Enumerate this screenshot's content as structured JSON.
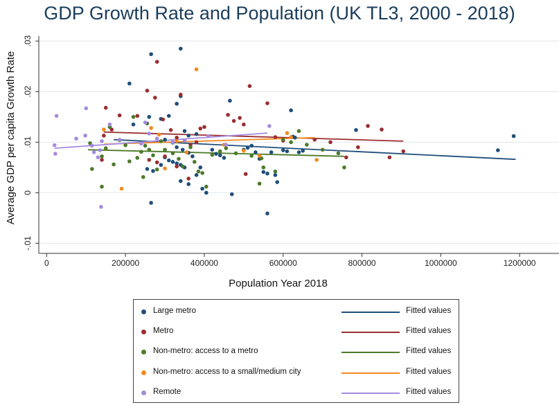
{
  "chart_data": {
    "type": "scatter",
    "title": "GDP Growth Rate and Population (UK TL3, 2000 - 2018)",
    "xlabel": "Population Year 2018",
    "ylabel": "Average GDP per capita Growth Rate",
    "xlim": [
      -20000,
      1300000
    ],
    "ylim": [
      -0.012,
      0.031
    ],
    "x_ticks": [
      0,
      200000,
      400000,
      600000,
      800000,
      1000000,
      1200000
    ],
    "x_tick_labels": [
      "0",
      "200000",
      "400000",
      "600000",
      "800000",
      "1000000",
      "1200000"
    ],
    "y_ticks": [
      -0.01,
      0,
      0.01,
      0.02,
      0.03
    ],
    "y_tick_labels": [
      "-.01",
      "0",
      ".01",
      ".02",
      ".03"
    ],
    "grid": "horizontal",
    "legend_position": "bottom",
    "series": [
      {
        "name": "Large metro",
        "color": "#1f4e79",
        "fit_label": "Fitted values",
        "fit": [
          [
            170000,
            0.0105
          ],
          [
            1190000,
            0.0066
          ]
        ],
        "points": [
          [
            265000,
            0.0274
          ],
          [
            340000,
            0.0285
          ],
          [
            210000,
            0.0216
          ],
          [
            330000,
            0.0176
          ],
          [
            340000,
            0.0191
          ],
          [
            465000,
            0.0182
          ],
          [
            620000,
            0.0163
          ],
          [
            220000,
            0.0135
          ],
          [
            260000,
            0.015
          ],
          [
            290000,
            0.0146
          ],
          [
            310000,
            0.0152
          ],
          [
            350000,
            0.0122
          ],
          [
            360000,
            0.0113
          ],
          [
            380000,
            0.0116
          ],
          [
            300000,
            0.0105
          ],
          [
            320000,
            0.0099
          ],
          [
            330000,
            0.009
          ],
          [
            345000,
            0.0085
          ],
          [
            360000,
            0.0079
          ],
          [
            370000,
            0.0072
          ],
          [
            300000,
            0.007
          ],
          [
            310000,
            0.0064
          ],
          [
            320000,
            0.0061
          ],
          [
            330000,
            0.0058
          ],
          [
            340000,
            0.0055
          ],
          [
            350000,
            0.005
          ],
          [
            290000,
            0.0055
          ],
          [
            255000,
            0.0047
          ],
          [
            270000,
            0.0043
          ],
          [
            420000,
            0.0085
          ],
          [
            430000,
            0.0077
          ],
          [
            440000,
            0.0074
          ],
          [
            450000,
            0.0069
          ],
          [
            500000,
            0.0085
          ],
          [
            510000,
            0.0089
          ],
          [
            520000,
            0.0093
          ],
          [
            530000,
            0.008
          ],
          [
            540000,
            0.0067
          ],
          [
            550000,
            0.0041
          ],
          [
            560000,
            0.0038
          ],
          [
            570000,
            0.008
          ],
          [
            580000,
            0.0035
          ],
          [
            585000,
            0.0021
          ],
          [
            600000,
            0.0084
          ],
          [
            610000,
            0.0082
          ],
          [
            625000,
            0.0111
          ],
          [
            630000,
            0.0109
          ],
          [
            640000,
            0.008
          ],
          [
            650000,
            0.0083
          ],
          [
            390000,
            0.005
          ],
          [
            395000,
            0.0008
          ],
          [
            405000,
            0.0
          ],
          [
            470000,
            -0.0003
          ],
          [
            560000,
            -0.0041
          ],
          [
            265000,
            -0.002
          ],
          [
            340000,
            0.0023
          ],
          [
            360000,
            0.0017
          ],
          [
            380000,
            0.0035
          ],
          [
            785000,
            0.0124
          ],
          [
            1145000,
            0.0084
          ],
          [
            1185000,
            0.0112
          ]
        ]
      },
      {
        "name": "Metro",
        "color": "#9b2d30",
        "fit_label": "Fitted values",
        "fit": [
          [
            145000,
            0.012
          ],
          [
            905000,
            0.0102
          ]
        ],
        "points": [
          [
            280000,
            0.0259
          ],
          [
            255000,
            0.0202
          ],
          [
            275000,
            0.0188
          ],
          [
            340000,
            0.0194
          ],
          [
            515000,
            0.0211
          ],
          [
            185000,
            0.0153
          ],
          [
            230000,
            0.0152
          ],
          [
            295000,
            0.0145
          ],
          [
            315000,
            0.0124
          ],
          [
            330000,
            0.0109
          ],
          [
            350000,
            0.0103
          ],
          [
            365000,
            0.0095
          ],
          [
            380000,
            0.01
          ],
          [
            390000,
            0.0127
          ],
          [
            400000,
            0.013
          ],
          [
            460000,
            0.0154
          ],
          [
            475000,
            0.0142
          ],
          [
            490000,
            0.0148
          ],
          [
            500000,
            0.0135
          ],
          [
            560000,
            0.0177
          ],
          [
            580000,
            0.011
          ],
          [
            600000,
            0.0103
          ],
          [
            150000,
            0.0168
          ],
          [
            165000,
            0.0125
          ],
          [
            145000,
            0.0113
          ],
          [
            140000,
            0.0065
          ],
          [
            260000,
            0.0065
          ],
          [
            280000,
            0.006
          ],
          [
            300000,
            0.0072
          ],
          [
            330000,
            0.0052
          ],
          [
            360000,
            0.0028
          ],
          [
            505000,
            0.0037
          ],
          [
            680000,
            0.0105
          ],
          [
            720000,
            0.01
          ],
          [
            760000,
            0.007
          ],
          [
            790000,
            0.009
          ],
          [
            815000,
            0.0132
          ],
          [
            850000,
            0.0125
          ],
          [
            870000,
            0.007
          ],
          [
            905000,
            0.0082
          ]
        ]
      },
      {
        "name": "Non-metro: access to a metro",
        "color": "#4d7a2a",
        "fit_label": "Fitted values",
        "fit": [
          [
            105000,
            0.0085
          ],
          [
            755000,
            0.0072
          ]
        ],
        "points": [
          [
            110000,
            0.0098
          ],
          [
            115000,
            0.0047
          ],
          [
            140000,
            0.0072
          ],
          [
            150000,
            0.0088
          ],
          [
            160000,
            0.013
          ],
          [
            170000,
            0.0056
          ],
          [
            185000,
            0.0104
          ],
          [
            200000,
            0.0094
          ],
          [
            210000,
            0.0062
          ],
          [
            220000,
            0.015
          ],
          [
            230000,
            0.0069
          ],
          [
            240000,
            0.0081
          ],
          [
            250000,
            0.0093
          ],
          [
            260000,
            0.0085
          ],
          [
            270000,
            0.0074
          ],
          [
            280000,
            0.0046
          ],
          [
            290000,
            0.0102
          ],
          [
            300000,
            0.0085
          ],
          [
            320000,
            0.0078
          ],
          [
            335000,
            0.0067
          ],
          [
            345000,
            0.0052
          ],
          [
            365000,
            0.009
          ],
          [
            375000,
            0.0061
          ],
          [
            385000,
            0.0042
          ],
          [
            395000,
            0.0039
          ],
          [
            420000,
            0.0075
          ],
          [
            440000,
            0.0082
          ],
          [
            455000,
            0.0088
          ],
          [
            480000,
            0.0078
          ],
          [
            520000,
            0.0073
          ],
          [
            545000,
            0.0068
          ],
          [
            540000,
            0.0018
          ],
          [
            550000,
            0.005
          ],
          [
            580000,
            0.0042
          ],
          [
            600000,
            0.0105
          ],
          [
            620000,
            0.01
          ],
          [
            640000,
            0.0122
          ],
          [
            660000,
            0.0095
          ],
          [
            700000,
            0.0085
          ],
          [
            740000,
            0.0078
          ],
          [
            755000,
            0.005
          ],
          [
            140000,
            0.0012
          ],
          [
            245000,
            0.0031
          ],
          [
            255000,
            0.0137
          ],
          [
            405000,
            0.0012
          ]
        ]
      },
      {
        "name": "Non-metro: access to a small/medium city",
        "color": "#f28a1d",
        "fit_label": "Fitted values",
        "fit": [
          [
            145000,
            0.0096
          ],
          [
            680000,
            0.0109
          ]
        ],
        "points": [
          [
            145000,
            0.0125
          ],
          [
            190000,
            0.0008
          ],
          [
            265000,
            0.0128
          ],
          [
            285000,
            0.0115
          ],
          [
            300000,
            0.0048
          ],
          [
            330000,
            0.0102
          ],
          [
            355000,
            0.008
          ],
          [
            380000,
            0.0244
          ],
          [
            450000,
            0.0095
          ],
          [
            500000,
            0.0083
          ],
          [
            540000,
            0.0073
          ],
          [
            610000,
            0.0118
          ],
          [
            620000,
            0.011
          ],
          [
            685000,
            0.0065
          ]
        ]
      },
      {
        "name": "Remote",
        "color": "#a48be0",
        "fit_label": "Fitted values",
        "fit": [
          [
            20000,
            0.0088
          ],
          [
            560000,
            0.0118
          ]
        ],
        "points": [
          [
            25000,
            0.0152
          ],
          [
            20000,
            0.0094
          ],
          [
            22000,
            0.0077
          ],
          [
            75000,
            0.0107
          ],
          [
            100000,
            0.0167
          ],
          [
            98000,
            0.0113
          ],
          [
            115000,
            0.0093
          ],
          [
            120000,
            0.008
          ],
          [
            135000,
            0.0084
          ],
          [
            140000,
            0.0102
          ],
          [
            138000,
            -0.0028
          ],
          [
            160000,
            0.0135
          ],
          [
            185000,
            0.0105
          ],
          [
            240000,
            0.0097
          ],
          [
            250000,
            0.0139
          ],
          [
            260000,
            0.0117
          ],
          [
            280000,
            0.0107
          ],
          [
            320000,
            0.01
          ],
          [
            350000,
            0.0103
          ],
          [
            410000,
            0.0112
          ],
          [
            455000,
            0.0095
          ],
          [
            565000,
            0.0132
          ],
          [
            130000,
            0.007
          ]
        ]
      }
    ]
  }
}
